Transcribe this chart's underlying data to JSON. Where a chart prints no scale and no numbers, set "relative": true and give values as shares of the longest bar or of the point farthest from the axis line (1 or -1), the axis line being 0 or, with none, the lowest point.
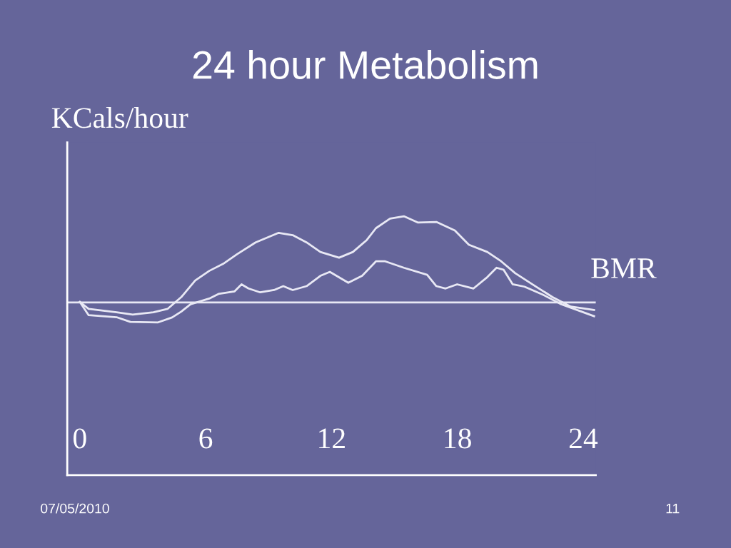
{
  "chart_data": {
    "type": "line",
    "title": "24 hour Metabolism",
    "ylabel": "KCals/hour",
    "relative": true,
    "xlim": [
      -0.6,
      24.6
    ],
    "xticks": [
      0,
      6,
      12,
      18,
      24
    ],
    "grid": false,
    "legend": false,
    "marker": "none",
    "line_style": "solid",
    "ref_lines": [
      {
        "axis": "y",
        "value": 0.667,
        "label": "BMR",
        "color": "#e8e8f4"
      }
    ],
    "annotations": [
      "07/05/2010",
      "11"
    ],
    "series": [
      {
        "color": "#e8e8f4",
        "x": [
          0,
          0.42,
          1.75,
          2.52,
          3.51,
          4.18,
          4.84,
          5.5,
          6.17,
          6.83,
          7.49,
          8.38,
          9.48,
          10.15,
          10.81,
          11.47,
          12.36,
          13.02,
          13.68,
          14.12,
          14.79,
          15.45,
          16.11,
          17.0,
          17.88,
          18.55,
          19.43,
          20.09,
          20.76,
          21.64,
          22.53,
          23.41,
          24.52
        ],
        "values": [
          0.669,
          0.642,
          0.629,
          0.62,
          0.629,
          0.642,
          0.688,
          0.752,
          0.789,
          0.816,
          0.853,
          0.899,
          0.936,
          0.927,
          0.899,
          0.862,
          0.84,
          0.862,
          0.908,
          0.954,
          0.991,
          1.0,
          0.976,
          0.978,
          0.945,
          0.89,
          0.862,
          0.826,
          0.78,
          0.734,
          0.688,
          0.651,
          0.638
        ]
      },
      {
        "color": "#e8e8f4",
        "x": [
          0,
          0.42,
          1.75,
          2.41,
          3.73,
          4.4,
          4.84,
          5.28,
          6.17,
          6.61,
          7.38,
          7.71,
          8.04,
          8.6,
          9.26,
          9.7,
          10.15,
          10.81,
          11.47,
          11.92,
          12.8,
          13.46,
          14.12,
          14.56,
          15.45,
          16.56,
          17.0,
          17.44,
          17.99,
          18.77,
          19.43,
          19.87,
          20.21,
          20.64,
          21.2,
          22.08,
          22.96,
          24.52
        ],
        "values": [
          0.669,
          0.618,
          0.61,
          0.592,
          0.59,
          0.609,
          0.632,
          0.66,
          0.682,
          0.7,
          0.71,
          0.737,
          0.721,
          0.706,
          0.715,
          0.73,
          0.715,
          0.73,
          0.77,
          0.785,
          0.743,
          0.77,
          0.826,
          0.826,
          0.801,
          0.774,
          0.73,
          0.721,
          0.737,
          0.721,
          0.765,
          0.801,
          0.793,
          0.737,
          0.728,
          0.697,
          0.66,
          0.614
        ]
      }
    ]
  }
}
